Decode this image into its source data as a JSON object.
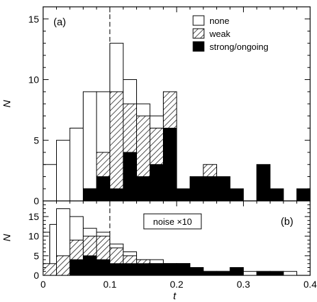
{
  "chart_data": [
    {
      "type": "bar",
      "panel_label": "(a)",
      "ylabel": "N",
      "xlabel": "",
      "xlim": [
        0,
        0.4
      ],
      "ylim": [
        0,
        16
      ],
      "yticks": [
        0,
        5,
        10,
        15
      ],
      "xticks": [
        0,
        0.1,
        0.2,
        0.3,
        0.4
      ],
      "bin_width": 0.02,
      "vline_x": 0.1,
      "legend_position": "top-right",
      "legend": [
        {
          "label": "none",
          "fill": "empty"
        },
        {
          "label": "weak",
          "fill": "hatched"
        },
        {
          "label": "strong/ongoing",
          "fill": "black"
        }
      ],
      "series": [
        {
          "name": "none",
          "fill": "empty",
          "bin_starts": [
            0.0,
            0.02,
            0.04,
            0.06,
            0.08,
            0.1,
            0.12,
            0.14,
            0.16,
            0.18
          ],
          "values": [
            3,
            5,
            6,
            9,
            9,
            13,
            10,
            8,
            7,
            5
          ]
        },
        {
          "name": "weak",
          "fill": "hatched",
          "bin_starts": [
            0.06,
            0.08,
            0.1,
            0.12,
            0.14,
            0.16,
            0.18,
            0.24
          ],
          "values": [
            1,
            4,
            9,
            8,
            7,
            6,
            9,
            3
          ]
        },
        {
          "name": "strong/ongoing",
          "fill": "black",
          "bin_starts": [
            0.06,
            0.08,
            0.1,
            0.12,
            0.14,
            0.16,
            0.18,
            0.2,
            0.22,
            0.24,
            0.26,
            0.28,
            0.3,
            0.32,
            0.34,
            0.36,
            0.38
          ],
          "values": [
            1,
            2,
            1,
            4,
            2,
            3,
            6,
            1,
            2,
            2,
            2,
            1,
            0,
            3,
            1,
            0,
            1
          ]
        }
      ]
    },
    {
      "type": "bar",
      "panel_label": "(b)",
      "annotation": "noise ×10",
      "ylabel": "N",
      "xlabel": "t",
      "xlim": [
        0,
        0.4
      ],
      "ylim": [
        0,
        19
      ],
      "yticks": [
        0,
        5,
        10,
        15
      ],
      "xticks": [
        0,
        0.1,
        0.2,
        0.3,
        0.4
      ],
      "xtick_labels": [
        "0",
        "0.1",
        "0.2",
        "0.3",
        "0.4"
      ],
      "bin_width": 0.02,
      "vline_x": 0.1,
      "series": [
        {
          "name": "none",
          "fill": "empty",
          "bin_starts": [
            0.0,
            0.01,
            0.02,
            0.04,
            0.06,
            0.08,
            0.1,
            0.12,
            0.14,
            0.16,
            0.18,
            0.2,
            0.22,
            0.24,
            0.26,
            0.28,
            0.3,
            0.32,
            0.34,
            0.36,
            0.38
          ],
          "values": [
            11,
            13,
            17,
            15,
            12,
            11,
            8,
            6,
            4,
            4,
            3,
            3,
            2,
            1,
            1,
            1,
            1,
            1,
            1,
            1,
            0
          ]
        },
        {
          "name": "weak",
          "fill": "hatched",
          "bin_starts": [
            0.0,
            0.02,
            0.04,
            0.06,
            0.08,
            0.1,
            0.12,
            0.14,
            0.16,
            0.18,
            0.2,
            0.22,
            0.24,
            0.26,
            0.28,
            0.3,
            0.32,
            0.34
          ],
          "values": [
            3,
            5,
            9,
            10,
            10,
            7,
            5,
            4,
            3,
            3,
            3,
            2,
            1,
            1,
            1,
            0,
            0,
            0
          ]
        },
        {
          "name": "strong/ongoing",
          "fill": "black",
          "bin_starts": [
            0.04,
            0.06,
            0.08,
            0.1,
            0.12,
            0.14,
            0.16,
            0.18,
            0.2,
            0.22,
            0.24,
            0.26,
            0.28,
            0.3,
            0.32,
            0.34,
            0.36,
            0.38
          ],
          "values": [
            4,
            5,
            4,
            3,
            3,
            3,
            3,
            3,
            3,
            2,
            1,
            1,
            2,
            0,
            1,
            1,
            0,
            0
          ]
        }
      ]
    }
  ]
}
